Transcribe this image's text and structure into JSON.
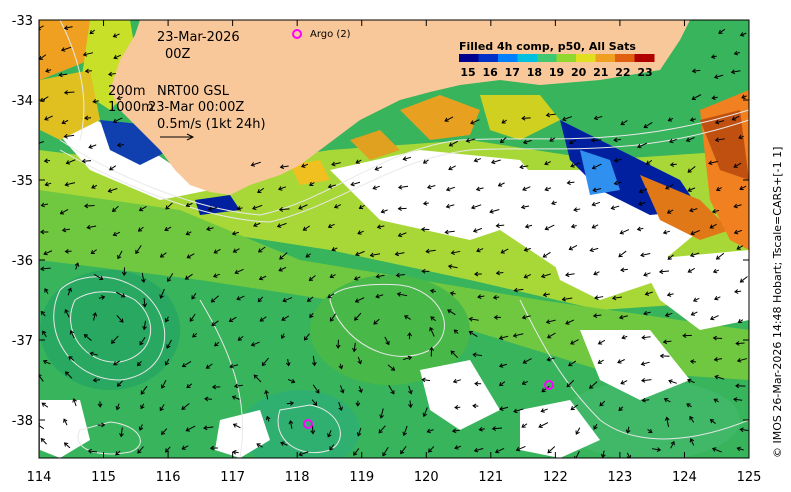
{
  "map": {
    "date_label": "23-Mar-2026",
    "time_label": "00Z",
    "argo_label": "Argo (2)",
    "depth_label_1": "200m",
    "depth_label_2": "1000m",
    "product_label": "NRT00 GSL",
    "product_time": "23-Mar 00:00Z",
    "scale_label": "0.5m/s (1kt 24h)",
    "side_caption": "© IMOS 26-Mar-2026 14:48 Hobart; Tscale=CARS+[-1 1]",
    "x_ticks": [
      "114",
      "115",
      "116",
      "117",
      "118",
      "119",
      "120",
      "121",
      "122",
      "123",
      "124",
      "125"
    ],
    "y_ticks": [
      "-33",
      "-34",
      "-35",
      "-36",
      "-37",
      "-38"
    ],
    "land_color": "#f9c89a",
    "argo_color": "#ff00ff"
  },
  "colorbar": {
    "title": "Filled 4h comp, p50, All Sats",
    "labels": [
      "15",
      "16",
      "17",
      "18",
      "19",
      "20",
      "21",
      "22",
      "23"
    ],
    "colors": [
      "#00008f",
      "#0030c8",
      "#0080ff",
      "#00c0e0",
      "#40c870",
      "#90d830",
      "#e0e020",
      "#f0a020",
      "#e06010",
      "#b00000"
    ]
  }
}
